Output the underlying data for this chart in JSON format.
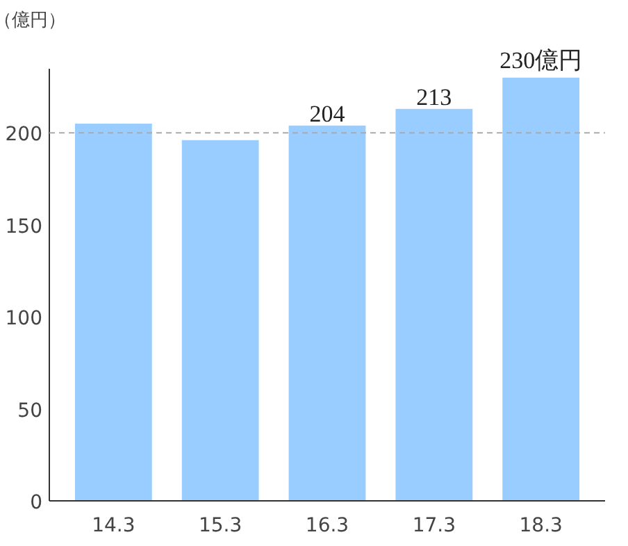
{
  "chart_data": {
    "type": "bar",
    "ylabel": "（億円）",
    "categories": [
      "14.3",
      "15.3",
      "16.3",
      "17.3",
      "18.3"
    ],
    "values": [
      205,
      196,
      204,
      213,
      230
    ],
    "value_labels": [
      null,
      null,
      "204",
      "213",
      "230億円"
    ],
    "color": "#99ccff",
    "ylim": [
      0,
      235
    ],
    "yticks": [
      0,
      50,
      100,
      150,
      200
    ],
    "grid": false,
    "ref_lines": [
      {
        "axis": "y",
        "value": 200,
        "label": null,
        "color": "#aaaaaa",
        "line_style": "dashed"
      }
    ]
  }
}
